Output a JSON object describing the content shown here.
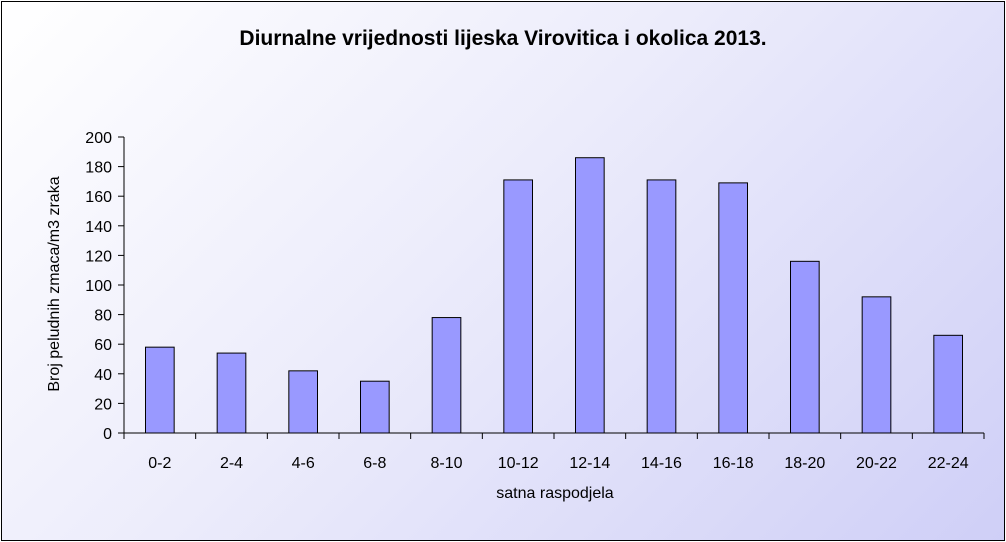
{
  "chart_data": {
    "type": "bar",
    "title": "Diurnalne vrijednosti lijeska Virovitica i okolica 2013.",
    "xlabel": "satna raspodjela",
    "ylabel": "Broj peludnih zmaca/m3 zraka",
    "categories": [
      "0-2",
      "2-4",
      "4-6",
      "6-8",
      "8-10",
      "10-12",
      "12-14",
      "14-16",
      "16-18",
      "18-20",
      "20-22",
      "22-24"
    ],
    "values": [
      58,
      54,
      42,
      35,
      78,
      171,
      186,
      171,
      169,
      116,
      92,
      66
    ],
    "ylim": [
      0,
      200
    ],
    "yticks": [
      0,
      20,
      40,
      60,
      80,
      100,
      120,
      140,
      160,
      180,
      200
    ],
    "grid": false,
    "legend": "none",
    "colors": {
      "bar_fill": "#9999ff",
      "bar_stroke": "#000000",
      "axis": "#000000"
    }
  }
}
